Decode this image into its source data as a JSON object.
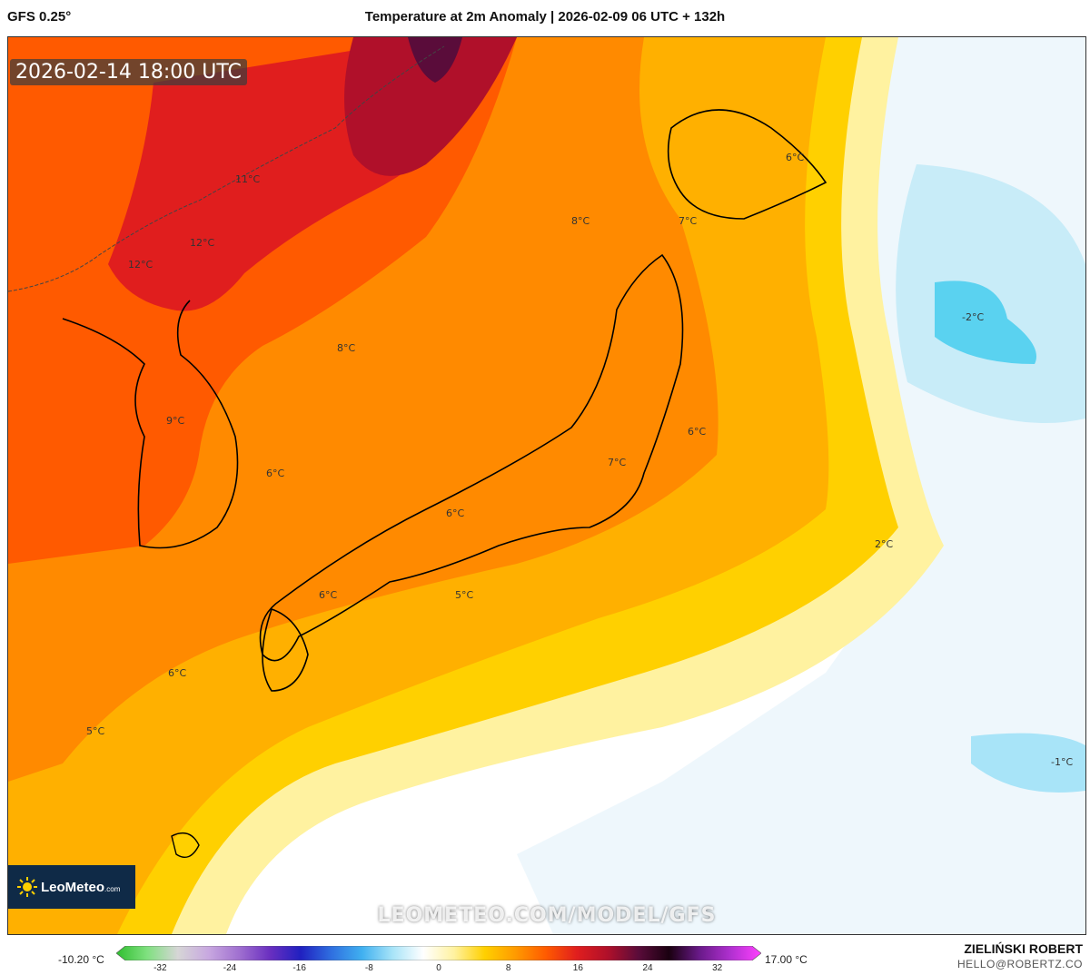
{
  "header": {
    "model": "GFS 0.25°",
    "title": "Temperature at 2m Anomaly | 2026-02-09 06 UTC + 132h"
  },
  "map": {
    "valid_time": "2026-02-14 18:00 UTC",
    "watermark": "LEOMETEO.COM/MODEL/GFS",
    "logo": {
      "brand": "LeoMeteo",
      "tld": ".com",
      "icon": "sun-icon"
    },
    "labels": [
      "11°C",
      "12°C",
      "12°C",
      "8°C",
      "7°C",
      "6°C",
      "8°C",
      "-2°C",
      "9°C",
      "6°C",
      "6°C",
      "7°C",
      "6°C",
      "2°C",
      "6°C",
      "5°C",
      "6°C",
      "5°C",
      "-1°C"
    ]
  },
  "legend": {
    "min_label": "-10.20 °C",
    "max_label": "17.00 °C",
    "ticks": [
      "-32",
      "-24",
      "-16",
      "-8",
      "0",
      "8",
      "16",
      "24",
      "32"
    ],
    "range": [
      -36,
      36
    ],
    "colors": [
      "#2fbf2f",
      "#7fe07f",
      "#d6d6d6",
      "#c8a8e0",
      "#a070d0",
      "#6a2fc0",
      "#2020c0",
      "#2f6fe0",
      "#40b0f0",
      "#a8e4f8",
      "#ffffff",
      "#fff2a0",
      "#ffd000",
      "#ff9a00",
      "#ff5a00",
      "#e01e1e",
      "#b0102a",
      "#5a0c3a",
      "#1a0010",
      "#6a1a8a",
      "#b030d0",
      "#ff40ff"
    ]
  },
  "author": {
    "name": "ZIELIŃSKI ROBERT",
    "email": "HELLO@ROBERTZ.CO"
  }
}
